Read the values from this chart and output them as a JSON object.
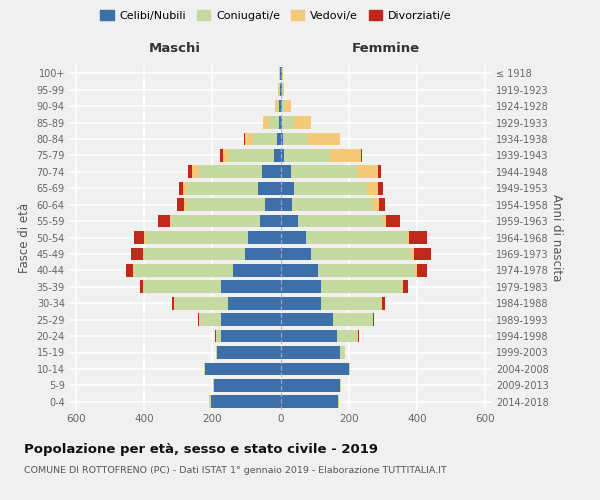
{
  "age_groups": [
    "0-4",
    "5-9",
    "10-14",
    "15-19",
    "20-24",
    "25-29",
    "30-34",
    "35-39",
    "40-44",
    "45-49",
    "50-54",
    "55-59",
    "60-64",
    "65-69",
    "70-74",
    "75-79",
    "80-84",
    "85-89",
    "90-94",
    "95-99",
    "100+"
  ],
  "birth_years": [
    "2014-2018",
    "2009-2013",
    "2004-2008",
    "1999-2003",
    "1994-1998",
    "1989-1993",
    "1984-1988",
    "1979-1983",
    "1974-1978",
    "1969-1973",
    "1964-1968",
    "1959-1963",
    "1954-1958",
    "1949-1953",
    "1944-1948",
    "1939-1943",
    "1934-1938",
    "1929-1933",
    "1924-1928",
    "1919-1923",
    "≤ 1918"
  ],
  "colors": {
    "celibi": "#3d6fa8",
    "coniugati": "#c5d9a0",
    "vedovi": "#f5c97a",
    "divorziati": "#c0281c"
  },
  "males": {
    "celibi": [
      205,
      195,
      220,
      185,
      175,
      175,
      155,
      175,
      140,
      105,
      95,
      60,
      45,
      65,
      55,
      20,
      10,
      5,
      3,
      2,
      2
    ],
    "coniugati": [
      2,
      3,
      5,
      5,
      15,
      65,
      155,
      225,
      290,
      295,
      300,
      260,
      230,
      210,
      185,
      130,
      70,
      30,
      8,
      3,
      2
    ],
    "vedovi": [
      2,
      0,
      0,
      0,
      0,
      0,
      2,
      2,
      3,
      3,
      5,
      5,
      8,
      10,
      20,
      20,
      25,
      15,
      5,
      1,
      0
    ],
    "divorziati": [
      0,
      0,
      0,
      0,
      2,
      2,
      5,
      10,
      20,
      35,
      30,
      35,
      20,
      12,
      12,
      8,
      2,
      0,
      0,
      0,
      0
    ]
  },
  "females": {
    "celibi": [
      170,
      175,
      200,
      175,
      165,
      155,
      120,
      120,
      110,
      90,
      75,
      50,
      35,
      40,
      30,
      10,
      8,
      5,
      4,
      3,
      3
    ],
    "coniugati": [
      2,
      3,
      5,
      15,
      60,
      115,
      175,
      235,
      285,
      295,
      295,
      250,
      235,
      215,
      195,
      135,
      70,
      35,
      10,
      3,
      2
    ],
    "vedovi": [
      0,
      0,
      0,
      0,
      2,
      2,
      2,
      3,
      5,
      5,
      8,
      10,
      20,
      30,
      60,
      90,
      95,
      50,
      18,
      5,
      3
    ],
    "divorziati": [
      0,
      0,
      0,
      0,
      2,
      3,
      10,
      15,
      30,
      50,
      50,
      40,
      15,
      15,
      10,
      5,
      0,
      0,
      0,
      0,
      0
    ]
  },
  "xlim": 620,
  "title": "Popolazione per età, sesso e stato civile - 2019",
  "subtitle": "COMUNE DI ROTTOFRENO (PC) - Dati ISTAT 1° gennaio 2019 - Elaborazione TUTTITALIA.IT",
  "ylabel_left": "Fasce di età",
  "ylabel_right": "Anni di nascita",
  "xlabel_left": "Maschi",
  "xlabel_right": "Femmine",
  "bg_color": "#f0f0f0",
  "grid_color": "#ffffff",
  "legend_labels": [
    "Celibi/Nubili",
    "Coniugati/e",
    "Vedovi/e",
    "Divorziati/e"
  ]
}
